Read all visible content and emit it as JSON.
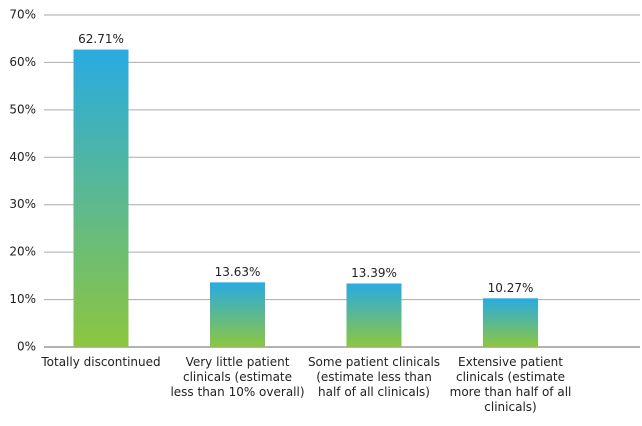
{
  "chart_data": {
    "type": "bar",
    "categories": [
      "Totally discontinued",
      "Very little patient clinicals (estimate less than 10% overall)",
      "Some patient clinicals (estimate less than half of all clinicals)",
      "Extensive patient clinicals (estimate more than half of all clinicals)"
    ],
    "values": [
      62.71,
      13.63,
      13.39,
      10.27
    ],
    "value_labels": [
      "62.71%",
      "13.63%",
      "13.39%",
      "10.27%"
    ],
    "gradient": [
      "#29abe2",
      "#8dc63f"
    ],
    "ylim": [
      0,
      70
    ],
    "yticks": [
      {
        "value": 0,
        "label": "0%"
      },
      {
        "value": 10,
        "label": "10%"
      },
      {
        "value": 20,
        "label": "20%"
      },
      {
        "value": 30,
        "label": "30%"
      },
      {
        "value": 40,
        "label": "40%"
      },
      {
        "value": 50,
        "label": "50%"
      },
      {
        "value": 60,
        "label": "60%"
      },
      {
        "value": 70,
        "label": "70%"
      }
    ],
    "grid": true
  }
}
